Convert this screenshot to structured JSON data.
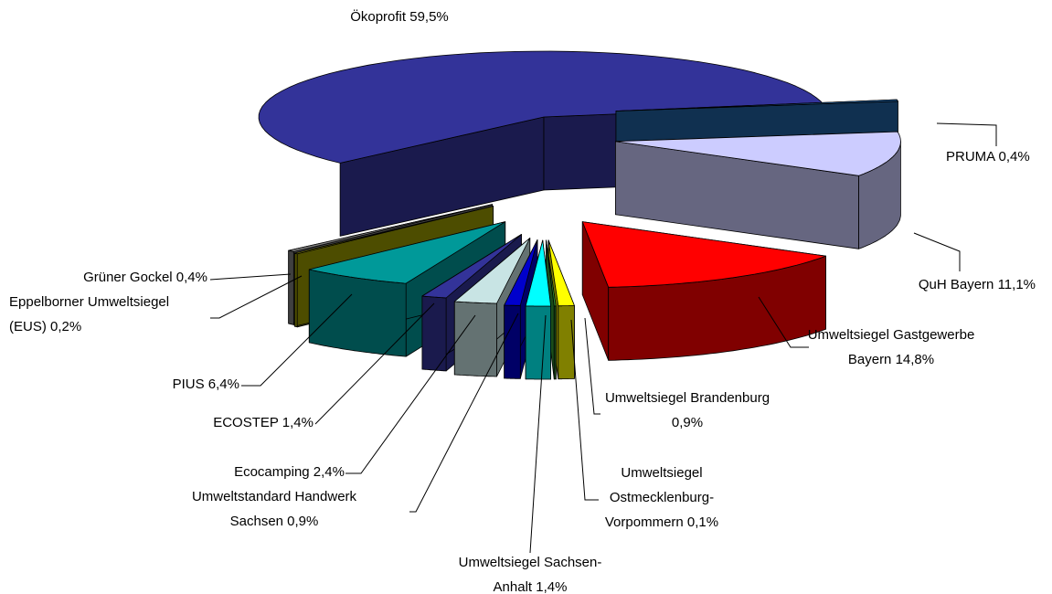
{
  "chart_data": {
    "type": "pie",
    "categories": [
      "Ökoprofit",
      "PRUMA",
      "QuH Bayern",
      "Umweltsiegel Gastgewerbe Bayern",
      "Umweltsiegel Brandenburg",
      "Umweltsiegel Ostmecklenburg-Vorpommern",
      "Umweltsiegel Sachsen-Anhalt",
      "Umweltstandard Handwerk Sachsen",
      "Ecocamping",
      "ECOSTEP",
      "PIUS",
      "Eppelborner Umweltsiegel (EUS)",
      "Grüner Gockel"
    ],
    "values": [
      59.5,
      0.4,
      11.1,
      14.8,
      0.9,
      0.1,
      1.4,
      0.9,
      2.4,
      1.4,
      6.4,
      0.2,
      0.4
    ],
    "value_labels": [
      "59,5%",
      "0,4%",
      "11,1%",
      "14,8%",
      "0,9%",
      "0,1%",
      "1,4%",
      "0,9%",
      "2,4%",
      "1,4%",
      "6,4%",
      "0,2%",
      "0,4%"
    ],
    "colors": [
      "#333399",
      "#1f5f9f",
      "#ccccff",
      "#ff0000",
      "#ffff00",
      "#339933",
      "#00ffff",
      "#0000cc",
      "#c8e4e4",
      "#333399",
      "#009999",
      "#999900",
      "#808080"
    ]
  }
}
